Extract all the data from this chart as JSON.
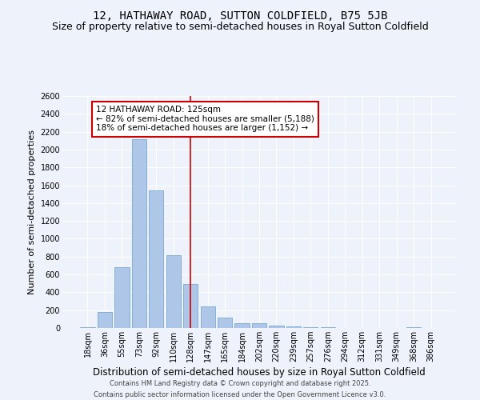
{
  "title": "12, HATHAWAY ROAD, SUTTON COLDFIELD, B75 5JB",
  "subtitle": "Size of property relative to semi-detached houses in Royal Sutton Coldfield",
  "xlabel": "Distribution of semi-detached houses by size in Royal Sutton Coldfield",
  "ylabel": "Number of semi-detached properties",
  "footer_line1": "Contains HM Land Registry data © Crown copyright and database right 2025.",
  "footer_line2": "Contains public sector information licensed under the Open Government Licence v3.0.",
  "property_label": "12 HATHAWAY ROAD: 125sqm",
  "pct_smaller": 82,
  "pct_larger": 18,
  "count_smaller": 5188,
  "count_larger": 1152,
  "categories": [
    "18sqm",
    "36sqm",
    "55sqm",
    "73sqm",
    "92sqm",
    "110sqm",
    "128sqm",
    "147sqm",
    "165sqm",
    "184sqm",
    "202sqm",
    "220sqm",
    "239sqm",
    "257sqm",
    "276sqm",
    "294sqm",
    "312sqm",
    "331sqm",
    "349sqm",
    "368sqm",
    "386sqm"
  ],
  "bar_values": [
    10,
    180,
    680,
    2120,
    1540,
    820,
    490,
    240,
    120,
    50,
    50,
    30,
    15,
    5,
    5,
    2,
    0,
    0,
    0,
    5,
    0
  ],
  "bar_color": "#aec6e8",
  "bar_edge_color": "#6a9ec8",
  "vline_color": "#cc0000",
  "vline_position": 6,
  "box_color": "#cc0000",
  "ylim": [
    0,
    2600
  ],
  "yticks": [
    0,
    200,
    400,
    600,
    800,
    1000,
    1200,
    1400,
    1600,
    1800,
    2000,
    2200,
    2400,
    2600
  ],
  "bg_color": "#eef2fa",
  "grid_color": "#ffffff",
  "title_fontsize": 10,
  "subtitle_fontsize": 9,
  "xlabel_fontsize": 8.5,
  "ylabel_fontsize": 8,
  "tick_fontsize": 7,
  "footer_fontsize": 6,
  "annotation_fontsize": 7.5
}
